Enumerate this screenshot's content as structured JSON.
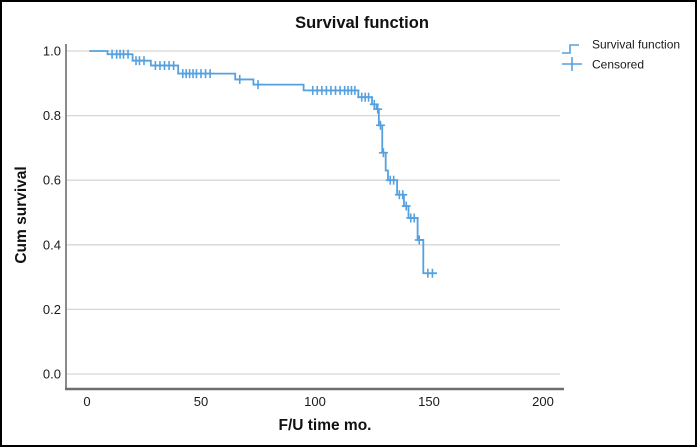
{
  "window": {
    "background": "#ffffff",
    "border_color": "#000000"
  },
  "colors": {
    "series_blue": "#55a1e0",
    "gridline": "#d6d6d6",
    "axis_line": "#8a8a8a",
    "text": "#111111"
  },
  "chart_data": {
    "type": "line",
    "subtype": "kaplan-meier-step-survival",
    "title": "Survival function",
    "xlabel": "F/U time mo.",
    "ylabel": "Cum survival",
    "xlim": [
      -9,
      210
    ],
    "ylim": [
      -0.05,
      1.07
    ],
    "x_ticks": [
      0,
      50,
      100,
      150,
      200
    ],
    "x_tick_labels": [
      "0",
      "50",
      "100",
      "150",
      "200"
    ],
    "y_ticks": [
      0.0,
      0.2,
      0.4,
      0.6,
      0.8,
      1.0
    ],
    "y_tick_labels": [
      "0.0",
      "0.2",
      "0.4",
      "0.6",
      "0.8",
      "1.0"
    ],
    "grid": "horizontal-only",
    "legend_position": "top-right",
    "series": [
      {
        "name": "Survival function",
        "type": "step",
        "color": "#55a1e0",
        "points": [
          [
            1,
            1.0
          ],
          [
            9,
            0.99
          ],
          [
            20,
            0.97
          ],
          [
            28,
            0.955
          ],
          [
            40,
            0.93
          ],
          [
            65,
            0.912
          ],
          [
            73,
            0.896
          ],
          [
            95,
            0.878
          ],
          [
            119,
            0.857
          ],
          [
            125,
            0.835
          ],
          [
            127,
            0.82
          ],
          [
            128,
            0.77
          ],
          [
            129.5,
            0.685
          ],
          [
            131,
            0.63
          ],
          [
            132,
            0.6
          ],
          [
            136,
            0.555
          ],
          [
            139,
            0.52
          ],
          [
            141,
            0.483
          ],
          [
            145,
            0.415
          ],
          [
            147.5,
            0.312
          ],
          [
            153.5,
            0.312
          ]
        ]
      },
      {
        "name": "Censored",
        "type": "marker",
        "marker": "plus",
        "color": "#55a1e0",
        "points": [
          [
            11,
            0.99
          ],
          [
            13,
            0.99
          ],
          [
            14.5,
            0.99
          ],
          [
            16,
            0.99
          ],
          [
            18,
            0.99
          ],
          [
            21.5,
            0.97
          ],
          [
            23,
            0.97
          ],
          [
            25,
            0.97
          ],
          [
            30,
            0.955
          ],
          [
            32,
            0.955
          ],
          [
            34,
            0.955
          ],
          [
            36,
            0.955
          ],
          [
            38,
            0.955
          ],
          [
            42,
            0.93
          ],
          [
            43.5,
            0.93
          ],
          [
            45,
            0.93
          ],
          [
            46.5,
            0.93
          ],
          [
            48,
            0.93
          ],
          [
            50,
            0.93
          ],
          [
            52,
            0.93
          ],
          [
            54,
            0.93
          ],
          [
            67,
            0.912
          ],
          [
            75,
            0.896
          ],
          [
            99,
            0.878
          ],
          [
            101,
            0.878
          ],
          [
            103,
            0.878
          ],
          [
            105,
            0.878
          ],
          [
            107,
            0.878
          ],
          [
            109,
            0.878
          ],
          [
            111,
            0.878
          ],
          [
            113,
            0.878
          ],
          [
            114.5,
            0.878
          ],
          [
            116,
            0.878
          ],
          [
            117.5,
            0.878
          ],
          [
            120.5,
            0.857
          ],
          [
            122,
            0.857
          ],
          [
            123.5,
            0.857
          ],
          [
            126,
            0.835
          ],
          [
            127.5,
            0.82
          ],
          [
            128.7,
            0.77
          ],
          [
            130,
            0.685
          ],
          [
            133,
            0.6
          ],
          [
            134.5,
            0.6
          ],
          [
            137,
            0.555
          ],
          [
            138.5,
            0.555
          ],
          [
            140,
            0.52
          ],
          [
            142,
            0.483
          ],
          [
            143.5,
            0.483
          ],
          [
            145.7,
            0.415
          ],
          [
            149.5,
            0.312
          ],
          [
            151.5,
            0.312
          ]
        ]
      }
    ]
  }
}
